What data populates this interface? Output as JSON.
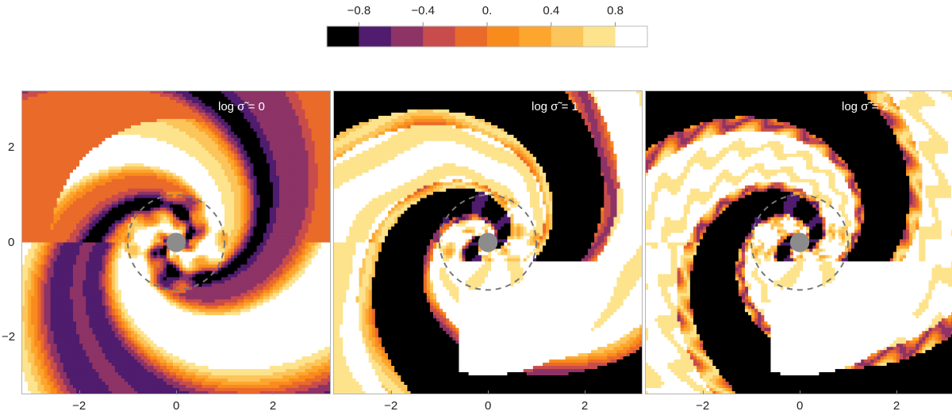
{
  "colorbar": {
    "tick_labels": [
      "−0.8",
      "−0.4",
      "0.",
      "0.4",
      "0.8"
    ],
    "tick_values": [
      -0.8,
      -0.4,
      0.0,
      0.4,
      0.8
    ],
    "range": [
      -1.0,
      1.0
    ],
    "levels": 10,
    "colors": [
      "#000000",
      "#4f1c6e",
      "#8d3366",
      "#c94c4c",
      "#ea6a2a",
      "#f98b1c",
      "#fda62e",
      "#fcc55a",
      "#fde38c",
      "#ffffff"
    ]
  },
  "panels": [
    {
      "label": "log σ̃ = 0"
    },
    {
      "label": "log σ̃ = 1"
    },
    {
      "label": "log σ̃ = 2"
    }
  ],
  "chart_data": {
    "type": "heatmap",
    "panels": [
      "log σ̃ = 0",
      "log σ̃ = 1",
      "log σ̃ = 2"
    ],
    "xlim": [
      -3.2,
      3.2
    ],
    "ylim": [
      -3.2,
      3.2
    ],
    "x_tick_labels": [
      "−2",
      "0",
      "2"
    ],
    "x_ticks": [
      -2,
      0,
      2
    ],
    "y_tick_labels": [
      "2",
      "0",
      "−2"
    ],
    "y_ticks": [
      2,
      0,
      -2
    ],
    "color_range": [
      -1.0,
      1.0
    ],
    "dashed_circle_radius": 1.0,
    "central_body_radius": 0.2,
    "colormap": "inferno-like, 10 discrete levels"
  }
}
